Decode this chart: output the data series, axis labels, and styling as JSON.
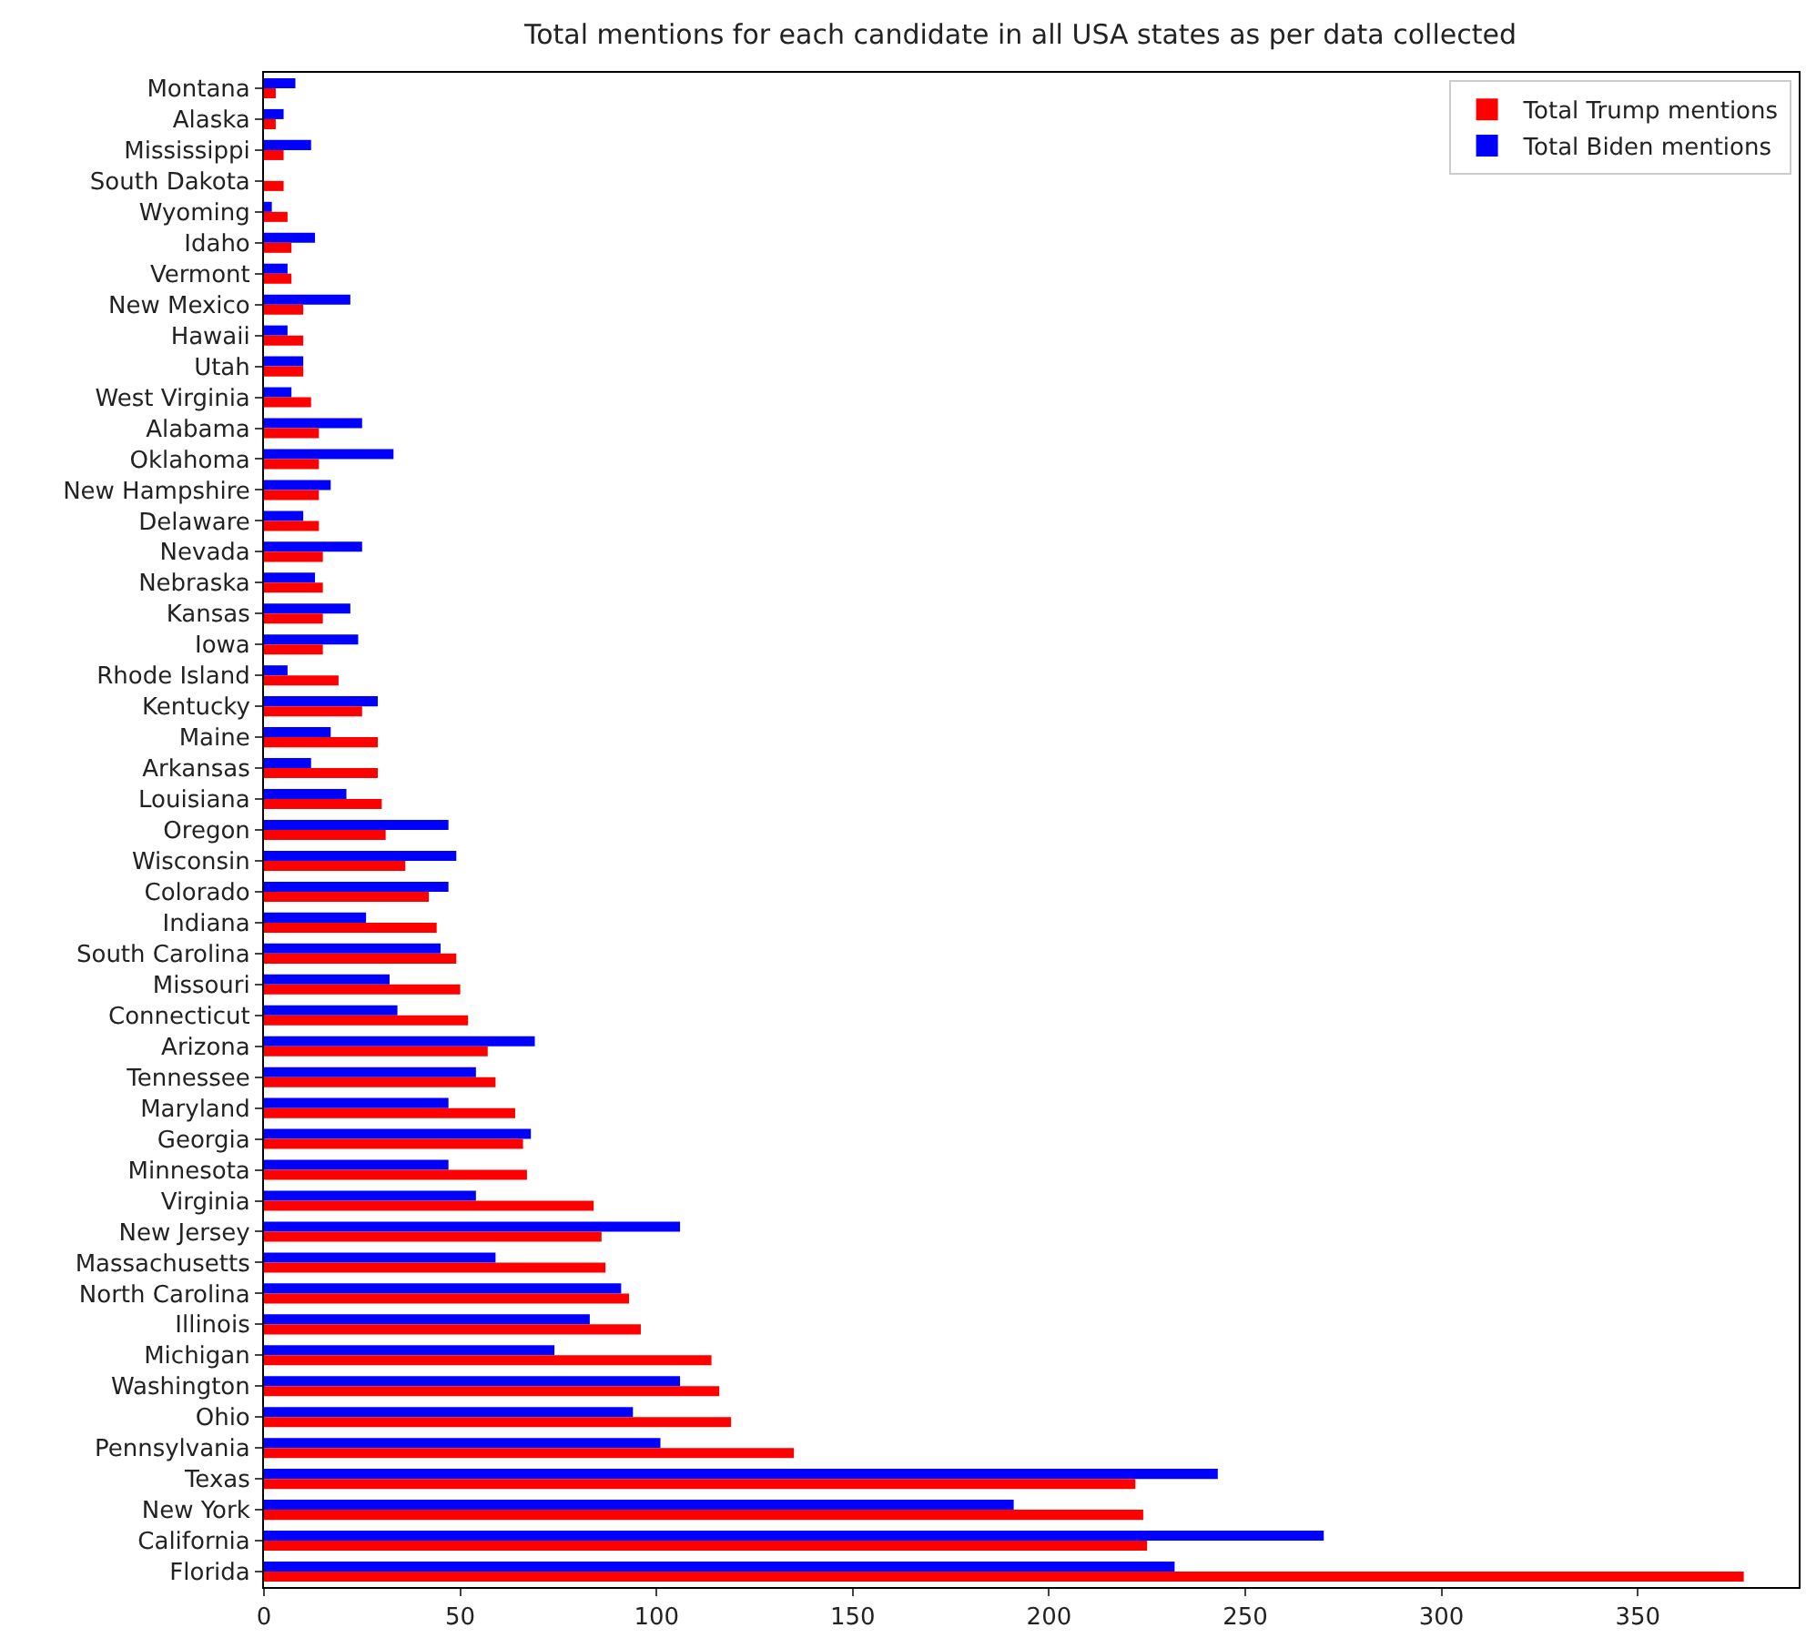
{
  "chart_data": {
    "type": "bar",
    "orientation": "horizontal",
    "title": "Total mentions for each candidate in all USA states as per data collected",
    "categories": [
      "Montana",
      "Alaska",
      "Mississippi",
      "South Dakota",
      "Wyoming",
      "Idaho",
      "Vermont",
      "New Mexico",
      "Hawaii",
      "Utah",
      "West Virginia",
      "Alabama",
      "Oklahoma",
      "New Hampshire",
      "Delaware",
      "Nevada",
      "Nebraska",
      "Kansas",
      "Iowa",
      "Rhode Island",
      "Kentucky",
      "Maine",
      "Arkansas",
      "Louisiana",
      "Oregon",
      "Wisconsin",
      "Colorado",
      "Indiana",
      "South Carolina",
      "Missouri",
      "Connecticut",
      "Arizona",
      "Tennessee",
      "Maryland",
      "Georgia",
      "Minnesota",
      "Virginia",
      "New Jersey",
      "Massachusetts",
      "North Carolina",
      "Illinois",
      "Michigan",
      "Washington",
      "Ohio",
      "Pennsylvania",
      "Texas",
      "New York",
      "California",
      "Florida"
    ],
    "series": [
      {
        "name": "Total Trump mentions",
        "color": "#ff0000",
        "values": [
          3,
          3,
          5,
          5,
          6,
          7,
          7,
          10,
          10,
          10,
          12,
          14,
          14,
          14,
          14,
          15,
          15,
          15,
          15,
          19,
          25,
          29,
          29,
          30,
          31,
          36,
          42,
          44,
          49,
          50,
          52,
          57,
          59,
          64,
          66,
          67,
          84,
          86,
          87,
          93,
          96,
          114,
          116,
          119,
          135,
          222,
          224,
          225,
          377
        ]
      },
      {
        "name": "Total Biden mentions",
        "color": "#0000ff",
        "values": [
          8,
          5,
          12,
          0,
          2,
          13,
          6,
          22,
          6,
          10,
          7,
          25,
          33,
          17,
          10,
          25,
          13,
          22,
          24,
          6,
          29,
          17,
          12,
          21,
          47,
          49,
          47,
          26,
          45,
          32,
          34,
          69,
          54,
          47,
          68,
          47,
          54,
          106,
          59,
          91,
          83,
          74,
          106,
          94,
          101,
          243,
          191,
          270,
          232
        ]
      }
    ],
    "xlim": [
      0,
      391
    ],
    "xticks": [
      0,
      50,
      100,
      150,
      200,
      250,
      300,
      350
    ],
    "grid": false,
    "legend": "top right"
  }
}
